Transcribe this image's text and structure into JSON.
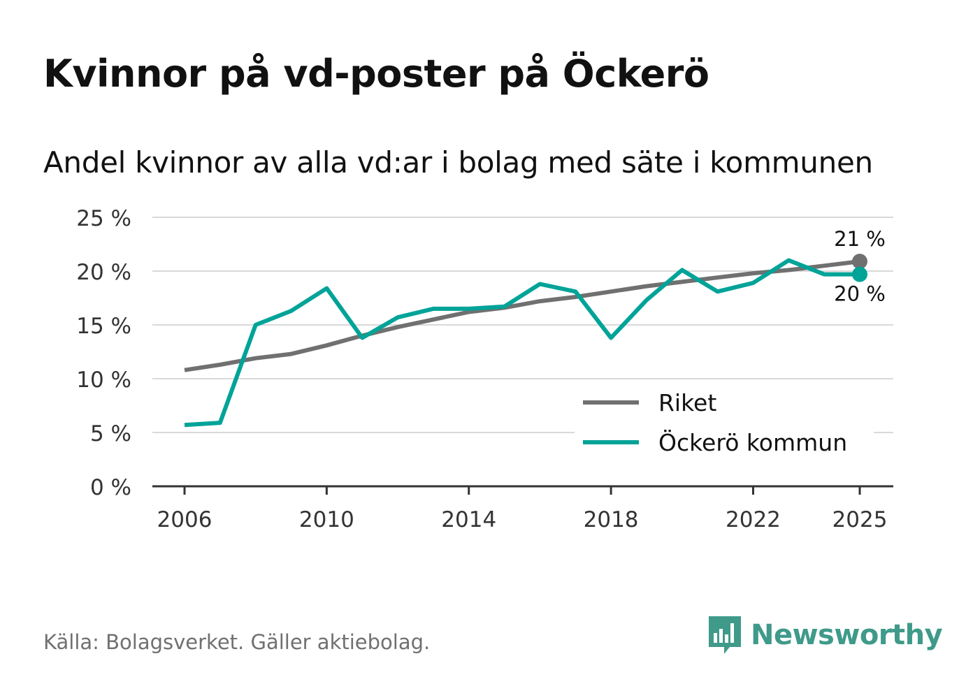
{
  "title": "Kvinnor på vd-poster på Öckerö",
  "subtitle": "Andel kvinnor av alla vd:ar i bolag med säte i kommunen",
  "source": "Källa: Bolagsverket. Gäller aktiebolag.",
  "brand": {
    "name": "Newsworthy",
    "logo_icon": "newsworthy-logo-icon",
    "color": "#3f9a8a"
  },
  "chart_data": {
    "type": "line",
    "title": "Kvinnor på vd-poster på Öckerö",
    "xlabel": "",
    "ylabel": "",
    "xlim": [
      2006,
      2025
    ],
    "ylim": [
      0,
      25
    ],
    "y_ticks": [
      0,
      5,
      10,
      15,
      20,
      25
    ],
    "y_tick_labels": [
      "0 %",
      "5 %",
      "10 %",
      "15 %",
      "20 %",
      "25 %"
    ],
    "x_ticks": [
      2006,
      2010,
      2014,
      2018,
      2022,
      2025
    ],
    "x_tick_labels": [
      "2006",
      "2010",
      "2014",
      "2018",
      "2022",
      "2025"
    ],
    "grid": true,
    "legend_position": "bottom-right",
    "x": [
      2006,
      2007,
      2008,
      2009,
      2010,
      2011,
      2012,
      2013,
      2014,
      2015,
      2016,
      2017,
      2018,
      2019,
      2020,
      2021,
      2022,
      2023,
      2024,
      2025
    ],
    "series": [
      {
        "name": "Riket",
        "color": "#707070",
        "values": [
          10.8,
          11.3,
          11.9,
          12.3,
          13.1,
          14.0,
          14.8,
          15.5,
          16.2,
          16.6,
          17.2,
          17.6,
          18.1,
          18.6,
          19.0,
          19.4,
          19.8,
          20.1,
          20.5,
          20.9
        ],
        "end_label": "21 %"
      },
      {
        "name": "Öckerö kommun",
        "color": "#00a398",
        "values": [
          5.7,
          5.9,
          15.0,
          16.3,
          18.4,
          13.8,
          15.7,
          16.5,
          16.5,
          16.7,
          18.8,
          18.1,
          13.8,
          17.3,
          20.1,
          18.1,
          18.9,
          21.0,
          19.7,
          19.7
        ],
        "end_label": "20 %"
      }
    ]
  }
}
